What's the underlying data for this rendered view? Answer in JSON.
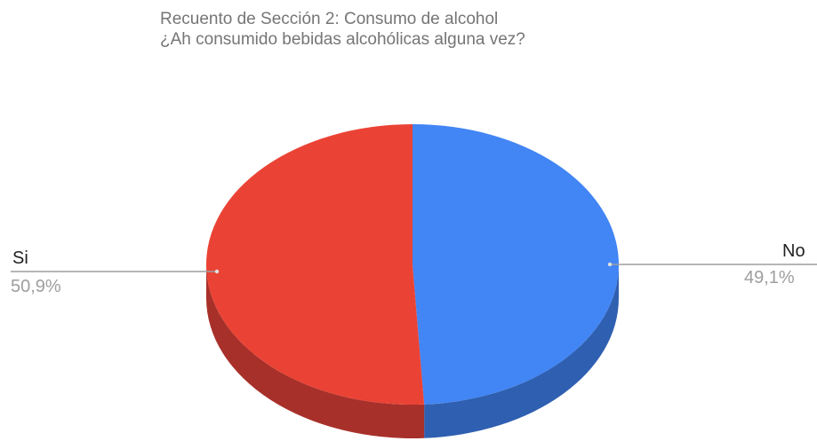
{
  "chart_data": {
    "type": "pie",
    "title": "Recuento de Sección 2: Consumo de alcohol",
    "subtitle": "¿Ah consumido bebidas alcohólicas alguna vez?",
    "slices": [
      {
        "label": "No",
        "percent_label": "49,1%",
        "value": 49.1,
        "color": "#4285f4",
        "side_color": "#2f5fb0"
      },
      {
        "label": "Si",
        "percent_label": "50,9%",
        "value": 50.9,
        "color": "#ea4335",
        "side_color": "#a8302a"
      }
    ],
    "style": "3d",
    "legend": "labels-outside"
  }
}
